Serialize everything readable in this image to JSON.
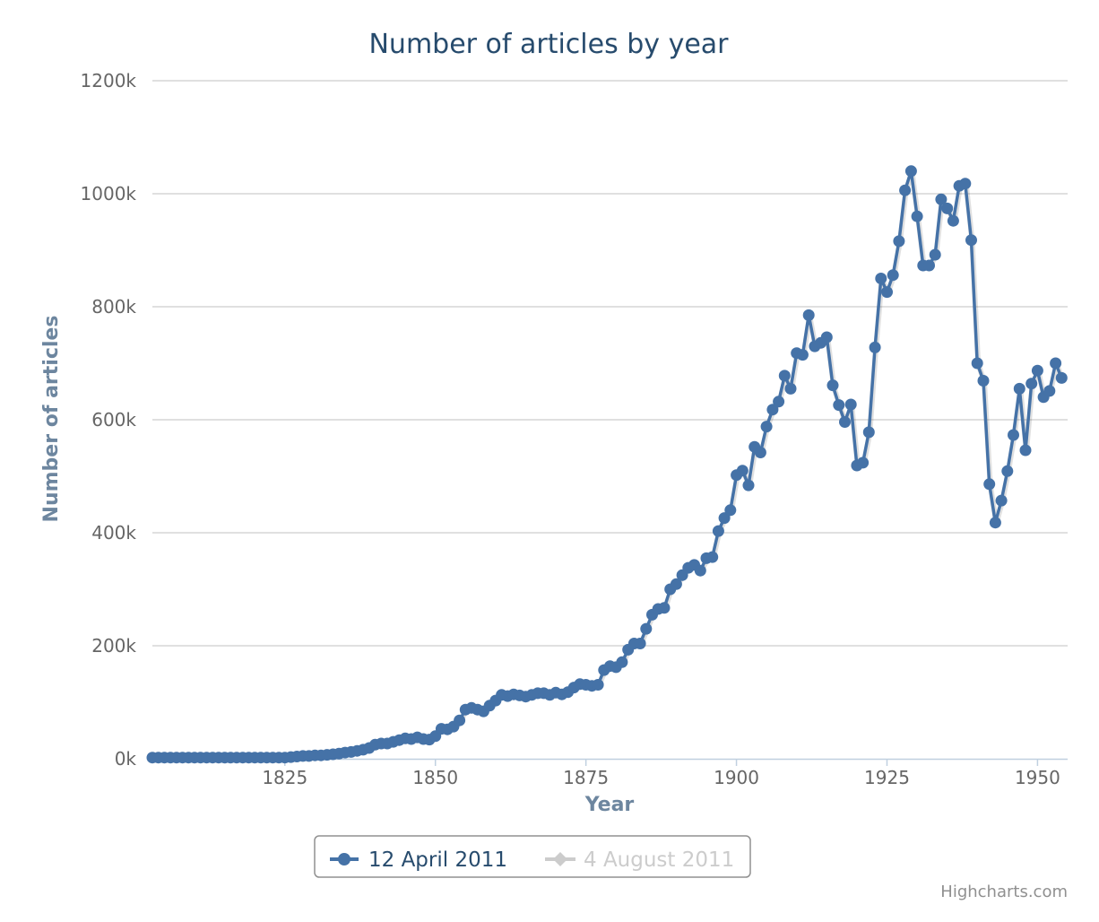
{
  "chart_data": {
    "type": "line",
    "title": "Number of articles by year",
    "xlabel": "Year",
    "ylabel": "Number of articles",
    "xlim": [
      1803,
      1955
    ],
    "ylim": [
      0,
      1200000
    ],
    "x_ticks": [
      1825,
      1850,
      1875,
      1900,
      1925,
      1950
    ],
    "y_ticks": [
      {
        "value": 0,
        "label": "0k"
      },
      {
        "value": 200000,
        "label": "200k"
      },
      {
        "value": 400000,
        "label": "400k"
      },
      {
        "value": 600000,
        "label": "600k"
      },
      {
        "value": 800000,
        "label": "800k"
      },
      {
        "value": 1000000,
        "label": "1000k"
      },
      {
        "value": 1200000,
        "label": "1200k"
      }
    ],
    "grid": true,
    "legend_position": "bottom-center",
    "series": [
      {
        "name": "12 April 2011",
        "color": "#4572a7",
        "visible": true,
        "x": [
          1803,
          1804,
          1805,
          1806,
          1807,
          1808,
          1809,
          1810,
          1811,
          1812,
          1813,
          1814,
          1815,
          1816,
          1817,
          1818,
          1819,
          1820,
          1821,
          1822,
          1823,
          1824,
          1825,
          1826,
          1827,
          1828,
          1829,
          1830,
          1831,
          1832,
          1833,
          1834,
          1835,
          1836,
          1837,
          1838,
          1839,
          1840,
          1841,
          1842,
          1843,
          1844,
          1845,
          1846,
          1847,
          1848,
          1849,
          1850,
          1851,
          1852,
          1853,
          1854,
          1855,
          1856,
          1857,
          1858,
          1859,
          1860,
          1861,
          1862,
          1863,
          1864,
          1865,
          1866,
          1867,
          1868,
          1869,
          1870,
          1871,
          1872,
          1873,
          1874,
          1875,
          1876,
          1877,
          1878,
          1879,
          1880,
          1881,
          1882,
          1883,
          1884,
          1885,
          1886,
          1887,
          1888,
          1889,
          1890,
          1891,
          1892,
          1893,
          1894,
          1895,
          1896,
          1897,
          1898,
          1899,
          1900,
          1901,
          1902,
          1903,
          1904,
          1905,
          1906,
          1907,
          1908,
          1909,
          1910,
          1911,
          1912,
          1913,
          1914,
          1915,
          1916,
          1917,
          1918,
          1919,
          1920,
          1921,
          1922,
          1923,
          1924,
          1925,
          1926,
          1927,
          1928,
          1929,
          1930,
          1931,
          1932,
          1933,
          1934,
          1935,
          1936,
          1937,
          1938,
          1939,
          1940,
          1941,
          1942,
          1943,
          1944,
          1945,
          1946,
          1947,
          1948,
          1949,
          1950,
          1951,
          1952,
          1953,
          1954
        ],
        "values": [
          2000,
          2000,
          2000,
          2000,
          2000,
          2000,
          2000,
          2000,
          2000,
          2000,
          2000,
          2000,
          2000,
          2000,
          2000,
          2000,
          2000,
          2000,
          2000,
          2000,
          2000,
          2000,
          2000,
          3000,
          4000,
          5000,
          5000,
          6000,
          6000,
          7000,
          8000,
          9000,
          11000,
          12000,
          14000,
          16000,
          19000,
          25000,
          27000,
          27000,
          30000,
          33000,
          36000,
          35000,
          38000,
          35000,
          34000,
          40000,
          53000,
          52000,
          57000,
          68000,
          87000,
          90000,
          87000,
          84000,
          94000,
          103000,
          113000,
          111000,
          114000,
          112000,
          110000,
          113000,
          116000,
          116000,
          113000,
          117000,
          114000,
          118000,
          126000,
          132000,
          131000,
          129000,
          131000,
          157000,
          164000,
          162000,
          171000,
          193000,
          204000,
          204000,
          230000,
          255000,
          265000,
          267000,
          300000,
          309000,
          325000,
          338000,
          343000,
          333000,
          355000,
          357000,
          403000,
          426000,
          440000,
          502000,
          510000,
          484000,
          552000,
          542000,
          588000,
          618000,
          632000,
          678000,
          655000,
          718000,
          715000,
          785000,
          730000,
          736000,
          746000,
          661000,
          626000,
          596000,
          627000,
          519000,
          524000,
          578000,
          728000,
          850000,
          826000,
          856000,
          916000,
          1006000,
          1040000,
          960000,
          873000,
          873000,
          892000,
          990000,
          974000,
          952000,
          1014000,
          1018000,
          918000,
          700000,
          669000,
          486000,
          418000,
          457000,
          509000,
          573000,
          655000,
          546000,
          664000,
          687000,
          640000,
          651000,
          700000,
          674000
        ]
      },
      {
        "name": "4 August 2011",
        "color": "#aa4643",
        "visible": false,
        "x": [],
        "values": []
      }
    ],
    "credits": "Highcharts.com"
  }
}
